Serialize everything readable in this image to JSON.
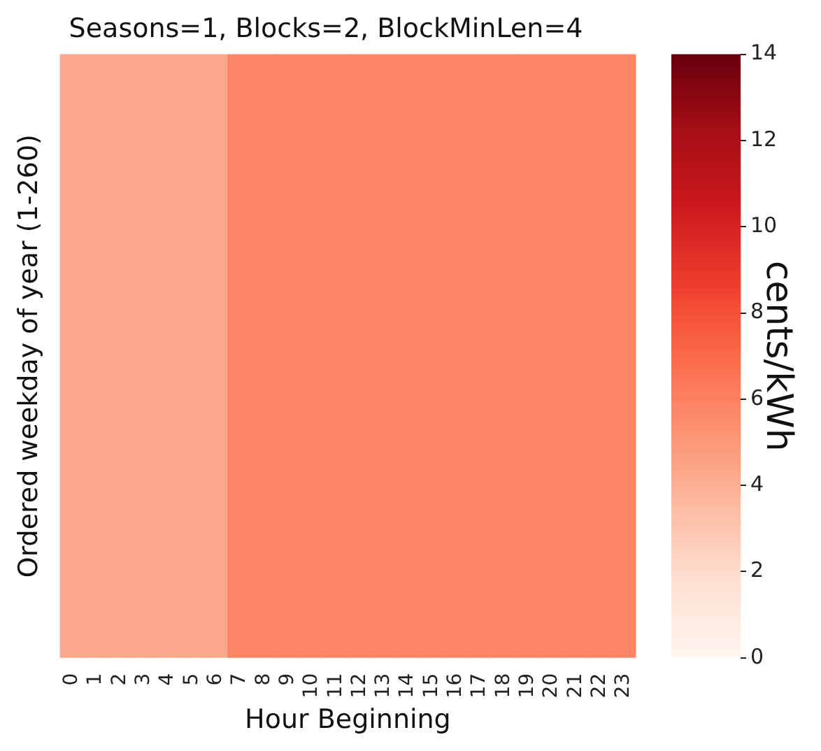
{
  "chart_data": {
    "type": "heatmap",
    "title": "Seasons=1, Blocks=2, BlockMinLen=4",
    "xlabel": "Hour Beginning",
    "ylabel": "Ordered weekday of year (1-260)",
    "clabel": "cents/kWh",
    "categories": [
      "0",
      "1",
      "2",
      "3",
      "4",
      "5",
      "6",
      "7",
      "8",
      "9",
      "10",
      "11",
      "12",
      "13",
      "14",
      "15",
      "16",
      "17",
      "18",
      "19",
      "20",
      "21",
      "22",
      "23"
    ],
    "y_categories": [
      null
    ],
    "cells": [
      [
        4.3,
        4.3,
        4.3,
        4.3,
        4.3,
        4.3,
        4.3,
        5.8,
        5.8,
        5.8,
        5.8,
        5.8,
        5.8,
        5.8,
        5.8,
        5.8,
        5.8,
        5.8,
        5.8,
        5.8,
        5.8,
        5.8,
        5.8,
        5.8
      ]
    ],
    "clim": [
      0,
      14
    ],
    "cticks": [
      0,
      2,
      4,
      6,
      8,
      10,
      12,
      14
    ]
  }
}
